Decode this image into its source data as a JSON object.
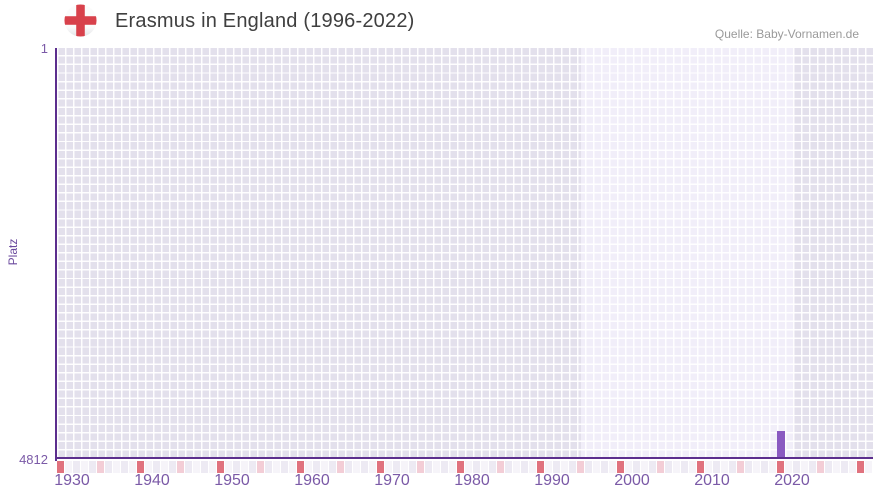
{
  "header": {
    "title": "Erasmus in England (1996-2022)",
    "source": "Quelle: Baby-Vornamen.de"
  },
  "chart_data": {
    "type": "bar",
    "title": "Erasmus in England (1996-2022)",
    "xlabel": "",
    "ylabel": "Platz",
    "x_domain": [
      1930,
      2032
    ],
    "x_tick_years": [
      1930,
      1940,
      1950,
      1960,
      1970,
      1980,
      1990,
      2000,
      2010,
      2020
    ],
    "y_axis": {
      "top_label": "1",
      "bottom_label": "4812",
      "min": 1,
      "max": 4812,
      "inverted": true
    },
    "highlight_period": [
      1996,
      2022
    ],
    "points": [
      {
        "year": 2020,
        "rank": 4484
      }
    ],
    "grid": true,
    "legend": false,
    "strip": {
      "decade_interval": 10,
      "half_decade_interval": 5
    }
  },
  "colors": {
    "bar": "#8a5ac1",
    "axis_line": "#5c2e8e",
    "cell_outside": "#e3e0ec",
    "cell_highlight": "#f1eef9",
    "strip_decade": "#e0727e",
    "strip_half_decade": "#f3cdd6",
    "strip_base_a": "#f6f4f9",
    "strip_base_b": "#edeaf3",
    "tick_label": "#7b5aa7",
    "axis_title": "#6b4a9e",
    "flag_cross": "#d8414b",
    "title_text": "#3f3f3f",
    "source_text": "#9a9a9a"
  }
}
